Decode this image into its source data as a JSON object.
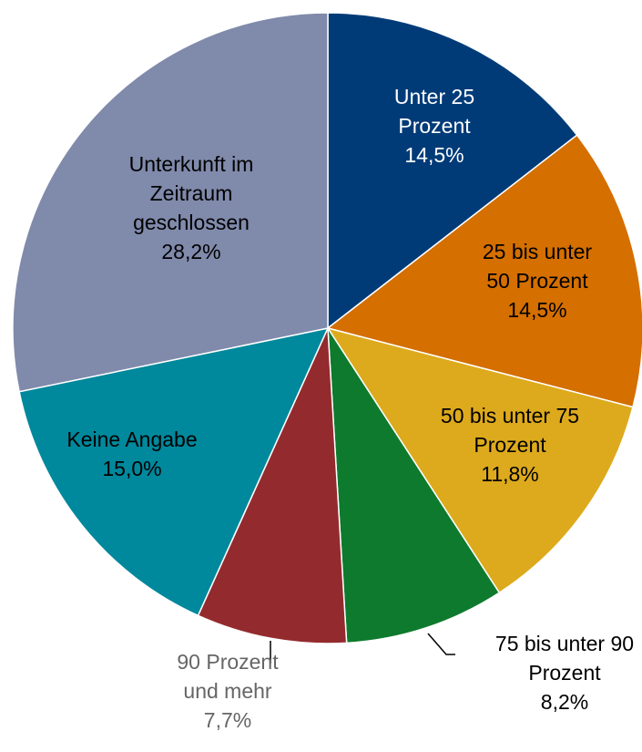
{
  "chart_data": {
    "type": "pie",
    "categories": [
      [
        "Unter 25",
        "Prozent"
      ],
      [
        "25 bis unter",
        "50 Prozent"
      ],
      [
        "50 bis unter 75",
        "Prozent"
      ],
      [
        "75 bis unter 90",
        "Prozent"
      ],
      [
        "90 Prozent",
        "und mehr"
      ],
      [
        "Keine Angabe"
      ],
      [
        "Unterkunft im",
        "Zeitraum",
        "geschlossen"
      ]
    ],
    "values": [
      14.5,
      14.5,
      11.8,
      8.2,
      7.7,
      15.0,
      28.2
    ],
    "value_labels": [
      "14,5%",
      "14,5%",
      "11,8%",
      "8,2%",
      "7,7%",
      "15,0%",
      "28,2%"
    ],
    "colors": [
      "#003b78",
      "#d46f00",
      "#ddaa1d",
      "#0e7a2d",
      "#932b2e",
      "#00889c",
      "#808aab"
    ]
  }
}
